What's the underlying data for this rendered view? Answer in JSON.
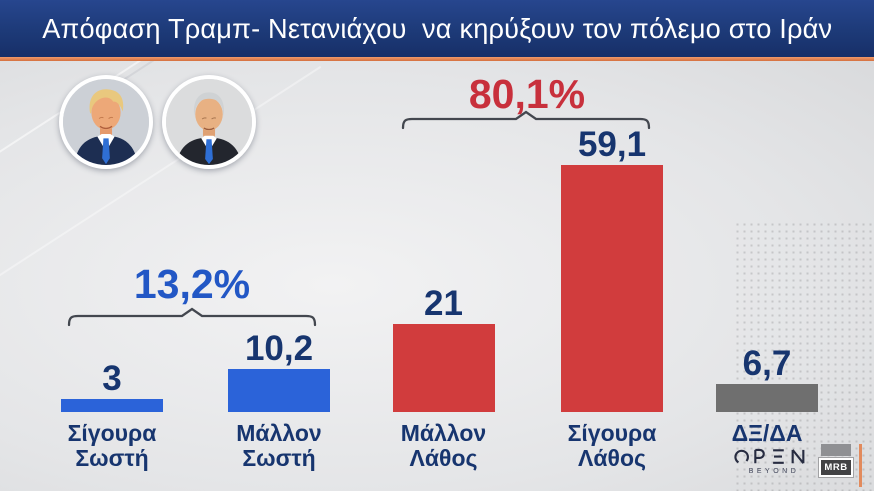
{
  "header": {
    "title": "Απόφαση Τραμπ- Νετανιάχου  να κηρύξουν τον πόλεμο στο Ιράν"
  },
  "avatars": [
    {
      "name": "Donald Trump"
    },
    {
      "name": "Benjamin Netanyahu"
    }
  ],
  "chart_data": {
    "type": "bar",
    "title": "Απόφαση Τραμπ- Νετανιάχου να κηρύξουν τον πόλεμο στο Ιράν",
    "categories": [
      "Σίγουρα Σωστή",
      "Μάλλον Σωστή",
      "Μάλλον Λάθος",
      "Σίγουρα Λάθος",
      "ΔΞ/ΔΑ"
    ],
    "values": [
      3,
      10.2,
      21,
      59.1,
      6.7
    ],
    "value_labels": [
      "3",
      "10,2",
      "21",
      "59,1",
      "6,7"
    ],
    "bar_colors": [
      "#2b63d9",
      "#2b63d9",
      "#d13c3d",
      "#d13c3d",
      "#6f6f6f"
    ],
    "value_label_color": "#17356f",
    "category_label_color": "#17356f",
    "groups": [
      {
        "label": "13,2%",
        "color": "#2257c5",
        "span": [
          "Σίγουρα Σωστή",
          "Μάλλον Σωστή"
        ]
      },
      {
        "label": "80,1%",
        "color": "#c8303c",
        "span": [
          "Μάλλον Λάθος",
          "Σίγουρα Λάθος"
        ]
      }
    ],
    "ylim": [
      0,
      60
    ],
    "grid": false,
    "legend": false
  },
  "footer": {
    "open_sub": "BEYOND",
    "mrb_label": "MRB"
  },
  "colors": {
    "header_bg": "#1d3a78",
    "accent_line": "#d4703f",
    "background": "#dcdddf",
    "bracket": "#43474f"
  }
}
